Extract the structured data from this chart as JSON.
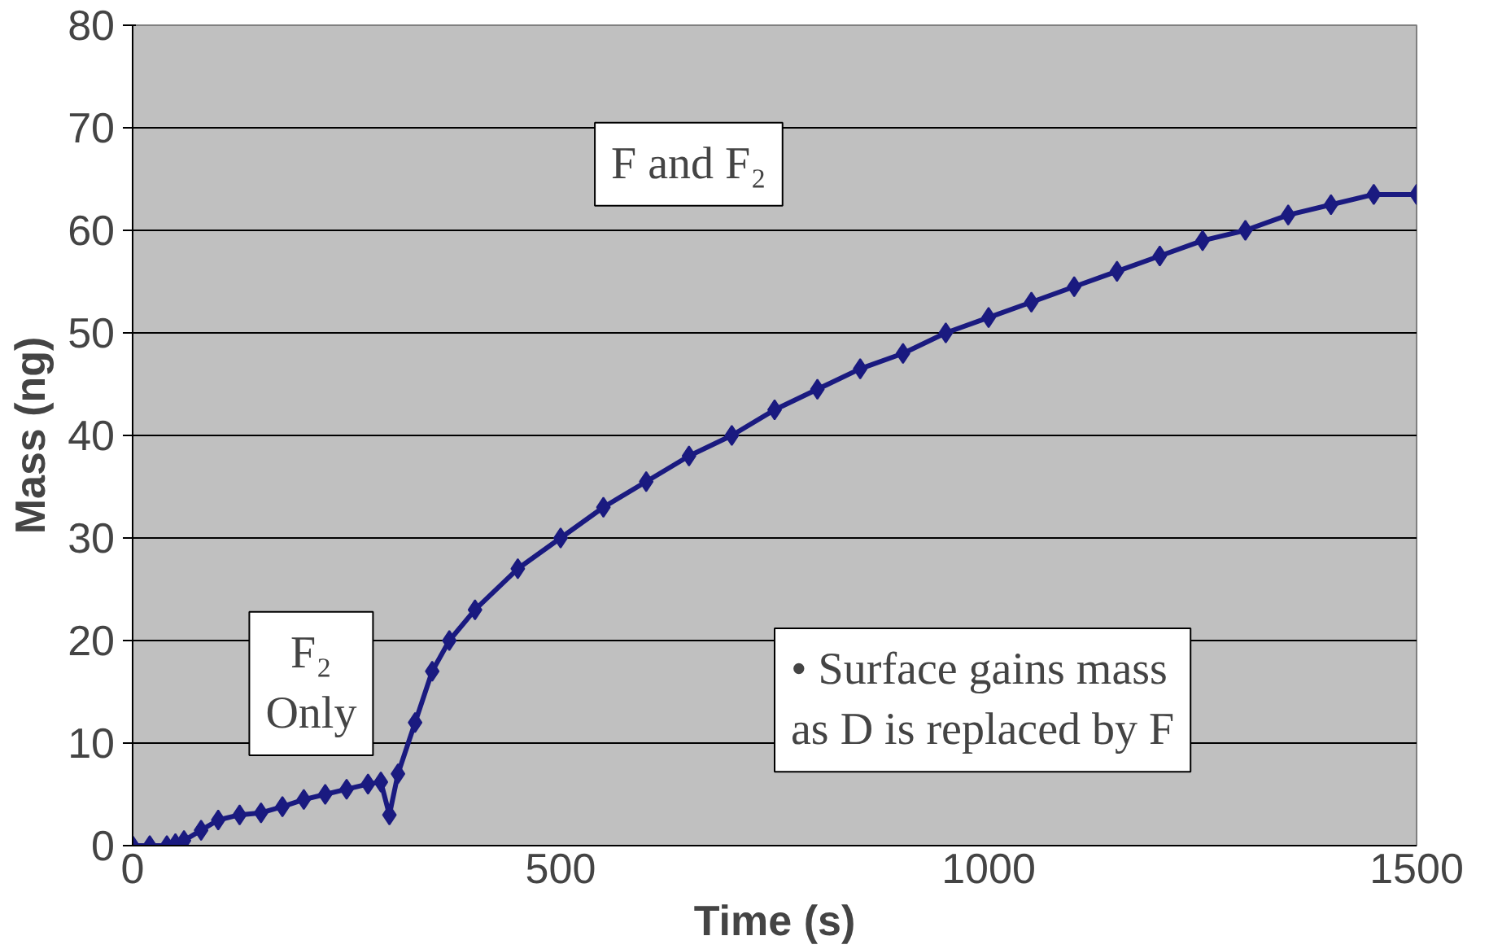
{
  "chart_data": {
    "type": "line",
    "xlabel": "Time (s)",
    "ylabel": "Mass (ng)",
    "x": [
      0,
      20,
      40,
      50,
      60,
      80,
      100,
      125,
      150,
      175,
      200,
      225,
      250,
      275,
      290,
      300,
      310,
      330,
      350,
      370,
      400,
      450,
      500,
      550,
      600,
      650,
      700,
      750,
      800,
      850,
      900,
      950,
      1000,
      1050,
      1100,
      1150,
      1200,
      1250,
      1300,
      1350,
      1400,
      1450,
      1500
    ],
    "series": [
      {
        "color": "#1a1a80",
        "values": [
          0,
          0,
          0,
          0.2,
          0.5,
          1.5,
          2.5,
          3,
          3.2,
          3.8,
          4.5,
          5,
          5.5,
          6,
          6.2,
          3,
          7,
          12,
          17,
          20,
          23,
          27,
          30,
          33,
          35.5,
          38,
          40,
          42.5,
          44.5,
          46.5,
          48,
          50,
          51.5,
          53,
          54.5,
          56,
          57.5,
          59,
          60,
          61.5,
          62.5,
          63.5,
          63.5
        ]
      }
    ],
    "xlim": [
      0,
      1500
    ],
    "ylim": [
      0,
      80
    ],
    "xticks": [
      0,
      500,
      1000,
      1500
    ],
    "yticks": [
      0,
      10,
      20,
      30,
      40,
      50,
      60,
      70,
      80
    ],
    "grid": "y",
    "marker": "diamond",
    "line_style": "solid",
    "annotations": [
      "F and F₂",
      "F₂\nOnly",
      "• Surface gains mass\nas D is replaced by F"
    ]
  }
}
